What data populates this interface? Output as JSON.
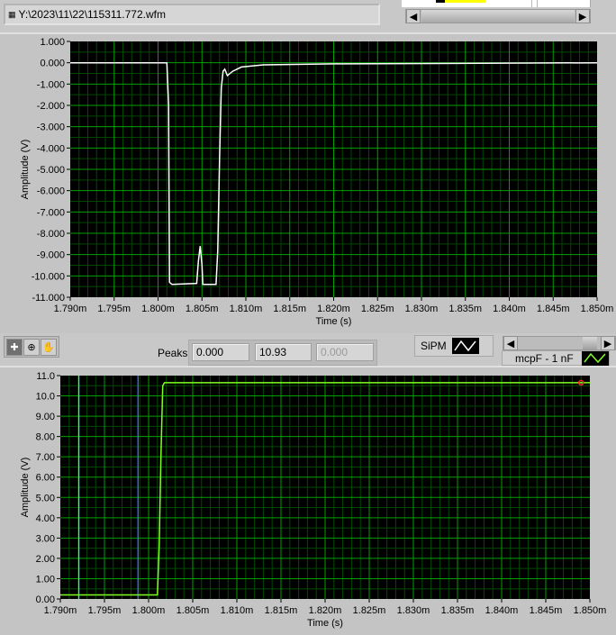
{
  "file_path": {
    "icon": "path-icon",
    "value": "Y:\\2023\\11\\22\\115311.772.wfm"
  },
  "peaks": {
    "label": "Peaks",
    "values": [
      "0.000",
      "10.93",
      "0.000"
    ]
  },
  "legends": {
    "top_plot": "SiPM",
    "bottom_plot": "mcpF - 1 nF"
  },
  "tools": [
    {
      "icon": "cursor-crosshair-icon"
    },
    {
      "icon": "zoom-icon"
    },
    {
      "icon": "pan-hand-icon"
    }
  ],
  "colors": {
    "plot_bg": "#000000",
    "grid_major": "#00a000",
    "grid_minor": "#004a00",
    "sipm_trace": "#ffffff",
    "mcp_trace": "#80ff20",
    "cursor1": "#40e0ff",
    "cursor2": "#4080ff",
    "peak_marker": "#ff2020"
  },
  "chart_data": [
    {
      "type": "line",
      "xlabel": "Time (s)",
      "ylabel": "Amplitude (V)",
      "xlim": [
        0.00179,
        0.00185
      ],
      "ylim": [
        -11,
        1
      ],
      "grid": true,
      "x_ticks": [
        "1.790m",
        "1.795m",
        "1.800m",
        "1.805m",
        "1.810m",
        "1.815m",
        "1.820m",
        "1.825m",
        "1.830m",
        "1.835m",
        "1.840m",
        "1.845m",
        "1.850m"
      ],
      "y_ticks": [
        "1.000",
        "0.000",
        "-1.000",
        "-2.000",
        "-3.000",
        "-4.000",
        "-5.000",
        "-6.000",
        "-7.000",
        "-8.000",
        "-9.000",
        "-10.000",
        "-11.000"
      ],
      "series": [
        {
          "name": "SiPM",
          "color": "#ffffff",
          "points": [
            [
              0.00179,
              0
            ],
            [
              0.001801,
              0
            ],
            [
              0.0018012,
              -2
            ],
            [
              0.0018013,
              -10.3
            ],
            [
              0.0018016,
              -10.4
            ],
            [
              0.0018044,
              -10.35
            ],
            [
              0.0018046,
              -9.3
            ],
            [
              0.0018048,
              -8.6
            ],
            [
              0.001805,
              -9.5
            ],
            [
              0.0018051,
              -10.4
            ],
            [
              0.0018066,
              -10.4
            ],
            [
              0.0018068,
              -8.8
            ],
            [
              0.001807,
              -4.5
            ],
            [
              0.0018072,
              -1.2
            ],
            [
              0.0018074,
              -0.4
            ],
            [
              0.0018076,
              -0.3
            ],
            [
              0.0018079,
              -0.6
            ],
            [
              0.0018085,
              -0.4
            ],
            [
              0.0018095,
              -0.2
            ],
            [
              0.001812,
              -0.1
            ],
            [
              0.00182,
              -0.05
            ],
            [
              0.00185,
              0
            ]
          ]
        }
      ]
    },
    {
      "type": "line",
      "xlabel": "Time (s)",
      "ylabel": "Amplitude (V)",
      "xlim": [
        0.00179,
        0.00185
      ],
      "ylim": [
        0,
        11
      ],
      "grid": true,
      "x_ticks": [
        "1.790m",
        "1.795m",
        "1.800m",
        "1.805m",
        "1.810m",
        "1.815m",
        "1.820m",
        "1.825m",
        "1.830m",
        "1.835m",
        "1.840m",
        "1.845m",
        "1.850m"
      ],
      "y_ticks": [
        "11.0",
        "10.0",
        "9.00",
        "8.00",
        "7.00",
        "6.00",
        "5.00",
        "4.00",
        "3.00",
        "2.00",
        "1.00",
        "0.00"
      ],
      "series": [
        {
          "name": "mcpF - 1 nF",
          "color": "#80ff20",
          "points": [
            [
              0.00179,
              0.2
            ],
            [
              0.001801,
              0.2
            ],
            [
              0.0018012,
              2.7
            ],
            [
              0.0018014,
              7
            ],
            [
              0.0018016,
              10.5
            ],
            [
              0.0018018,
              10.65
            ],
            [
              0.00185,
              10.65
            ]
          ]
        }
      ],
      "cursors": [
        {
          "x": 0.0017921,
          "color": "#40e0ff"
        },
        {
          "x": 0.0017988,
          "color": "#4080ff"
        }
      ],
      "marker": {
        "x": 0.001849,
        "y": 10.65,
        "color": "#ff2020"
      }
    }
  ]
}
